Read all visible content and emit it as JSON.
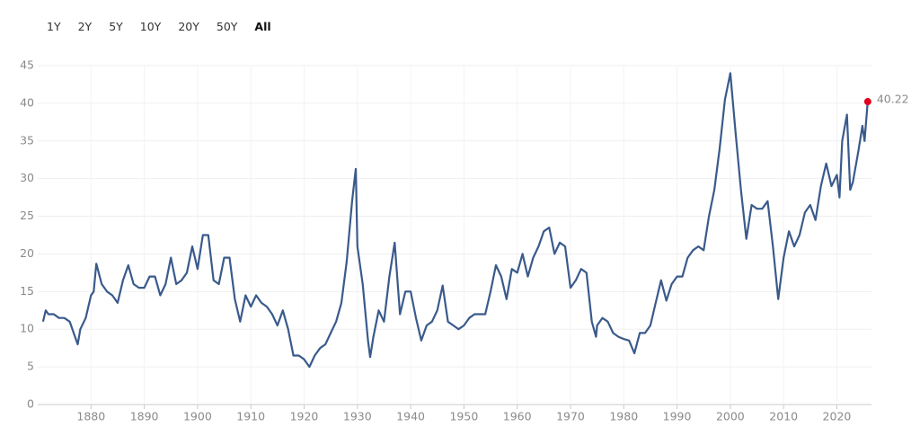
{
  "range_buttons": {
    "labels": [
      "1Y",
      "2Y",
      "5Y",
      "10Y",
      "20Y",
      "50Y",
      "All"
    ],
    "selected": "All"
  },
  "chart_data": {
    "type": "line",
    "color": "#3a5a8b",
    "marker_color": "#e3001b",
    "grid": true,
    "xlim": [
      1870,
      2026.5
    ],
    "ylim": [
      0,
      45
    ],
    "xticks": [
      1880,
      1890,
      1900,
      1910,
      1920,
      1930,
      1940,
      1950,
      1960,
      1970,
      1980,
      1990,
      2000,
      2010,
      2020
    ],
    "yticks": [
      0,
      5,
      10,
      15,
      20,
      25,
      30,
      35,
      40,
      45
    ],
    "x": [
      1871,
      1871.5,
      1872,
      1873,
      1874,
      1875,
      1876,
      1877,
      1877.5,
      1878,
      1879,
      1880,
      1880.5,
      1881,
      1882,
      1883,
      1884,
      1885,
      1886,
      1887,
      1888,
      1889,
      1890,
      1891,
      1892,
      1893,
      1894,
      1895,
      1896,
      1897,
      1898,
      1899,
      1900,
      1901,
      1902,
      1903,
      1904,
      1905,
      1906,
      1907,
      1908,
      1909,
      1910,
      1911,
      1912,
      1913,
      1914,
      1915,
      1916,
      1917,
      1918,
      1919,
      1920,
      1921,
      1922,
      1923,
      1924,
      1925,
      1926,
      1927,
      1928,
      1929,
      1929.7,
      1930,
      1931,
      1932,
      1932.4,
      1933,
      1934,
      1935,
      1936,
      1937,
      1938,
      1939,
      1940,
      1941,
      1942,
      1943,
      1944,
      1945,
      1946,
      1947,
      1948,
      1949,
      1950,
      1951,
      1952,
      1953,
      1954,
      1955,
      1956,
      1957,
      1958,
      1959,
      1960,
      1961,
      1962,
      1963,
      1964,
      1965,
      1966,
      1967,
      1968,
      1969,
      1970,
      1971,
      1972,
      1973,
      1974,
      1974.8,
      1975,
      1976,
      1977,
      1978,
      1979,
      1980,
      1981,
      1982,
      1983,
      1984,
      1985,
      1986,
      1987,
      1988,
      1989,
      1990,
      1991,
      1992,
      1993,
      1994,
      1995,
      1996,
      1997,
      1998,
      1999,
      2000,
      2001,
      2002,
      2003,
      2004,
      2005,
      2006,
      2007,
      2008,
      2009,
      2010,
      2011,
      2012,
      2013,
      2014,
      2015,
      2016,
      2017,
      2018,
      2019,
      2020,
      2020.5,
      2021,
      2021.9,
      2022.5,
      2023,
      2024,
      2024.8,
      2025.2,
      2025.8
    ],
    "values": [
      11,
      12.5,
      12,
      12,
      11.5,
      11.5,
      11,
      9,
      8,
      10,
      11.5,
      14.5,
      15,
      18.7,
      16,
      15,
      14.5,
      13.5,
      16.5,
      18.5,
      16,
      15.5,
      15.5,
      17,
      17,
      14.5,
      16,
      19.5,
      16,
      16.5,
      17.5,
      21,
      18,
      22.5,
      22.5,
      16.5,
      16,
      19.5,
      19.5,
      14,
      11,
      14.5,
      13,
      14.5,
      13.5,
      13,
      12,
      10.5,
      12.5,
      10,
      6.5,
      6.5,
      6,
      5,
      6.5,
      7.5,
      8,
      9.5,
      11,
      13.5,
      19,
      27,
      31.3,
      21,
      16,
      8.5,
      6.3,
      9,
      12.5,
      11,
      17,
      21.5,
      12,
      15,
      15,
      11.5,
      8.5,
      10.5,
      11,
      12.5,
      15.8,
      11,
      10.5,
      10,
      10.5,
      11.5,
      12,
      12,
      12,
      15,
      18.5,
      17,
      14,
      18,
      17.5,
      20,
      17,
      19.5,
      21,
      23,
      23.5,
      20,
      21.5,
      21,
      15.5,
      16.5,
      18,
      17.5,
      11,
      9,
      10.5,
      11.5,
      11,
      9.5,
      9,
      8.7,
      8.5,
      6.8,
      9.5,
      9.5,
      10.5,
      13.5,
      16.5,
      13.8,
      16,
      17,
      17,
      19.5,
      20.5,
      21,
      20.5,
      25,
      28.5,
      34,
      40.5,
      44,
      36,
      28.5,
      22,
      26.5,
      26,
      26,
      27,
      21,
      14,
      19.5,
      23,
      21,
      22.5,
      25.5,
      26.5,
      24.5,
      29,
      32,
      29,
      30.5,
      27.5,
      35,
      38.5,
      28.5,
      29.5,
      33.5,
      37,
      35,
      40.22
    ]
  }
}
